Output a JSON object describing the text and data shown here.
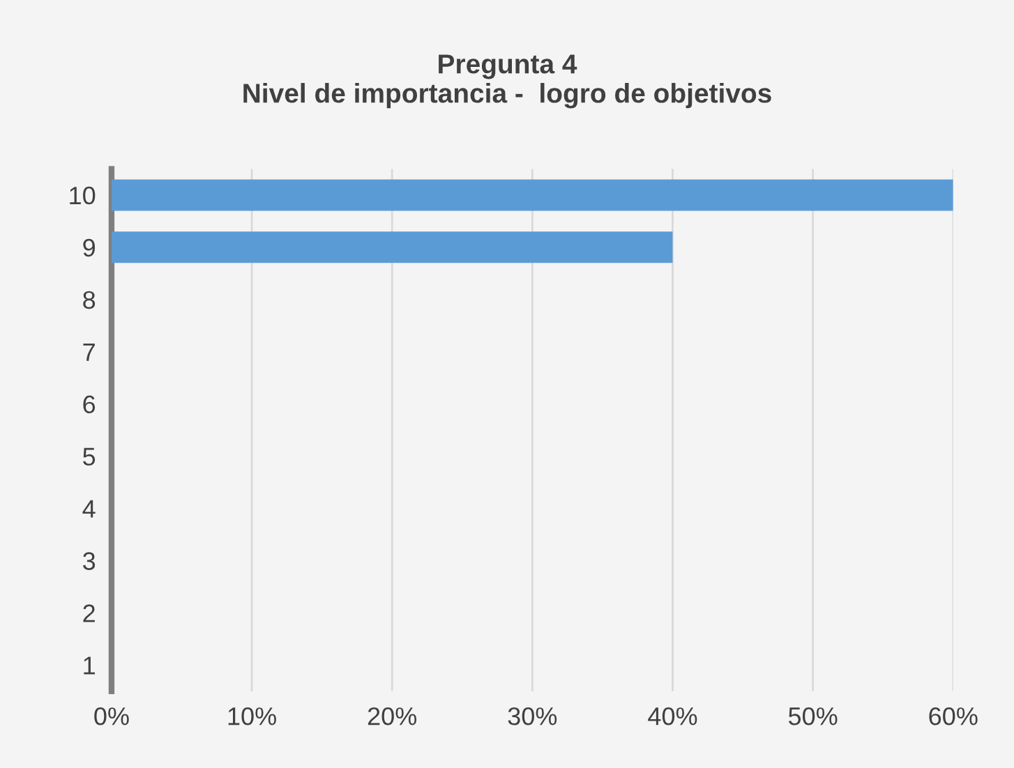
{
  "chart_data": {
    "type": "bar",
    "orientation": "horizontal",
    "title": "Pregunta 4\nNivel de importancia -  logro de objetivos",
    "categories": [
      "10",
      "9",
      "8",
      "7",
      "6",
      "5",
      "4",
      "3",
      "2",
      "1"
    ],
    "values": [
      60,
      40,
      0,
      0,
      0,
      0,
      0,
      0,
      0,
      0
    ],
    "color": "#5b9bd5",
    "xlim": [
      0,
      60
    ],
    "xticks": [
      {
        "value": 0,
        "label": "0%"
      },
      {
        "value": 10,
        "label": "10%"
      },
      {
        "value": 20,
        "label": "20%"
      },
      {
        "value": 30,
        "label": "30%"
      },
      {
        "value": 40,
        "label": "40%"
      },
      {
        "value": 50,
        "label": "50%"
      },
      {
        "value": 60,
        "label": "60%"
      }
    ],
    "grid": "x"
  }
}
